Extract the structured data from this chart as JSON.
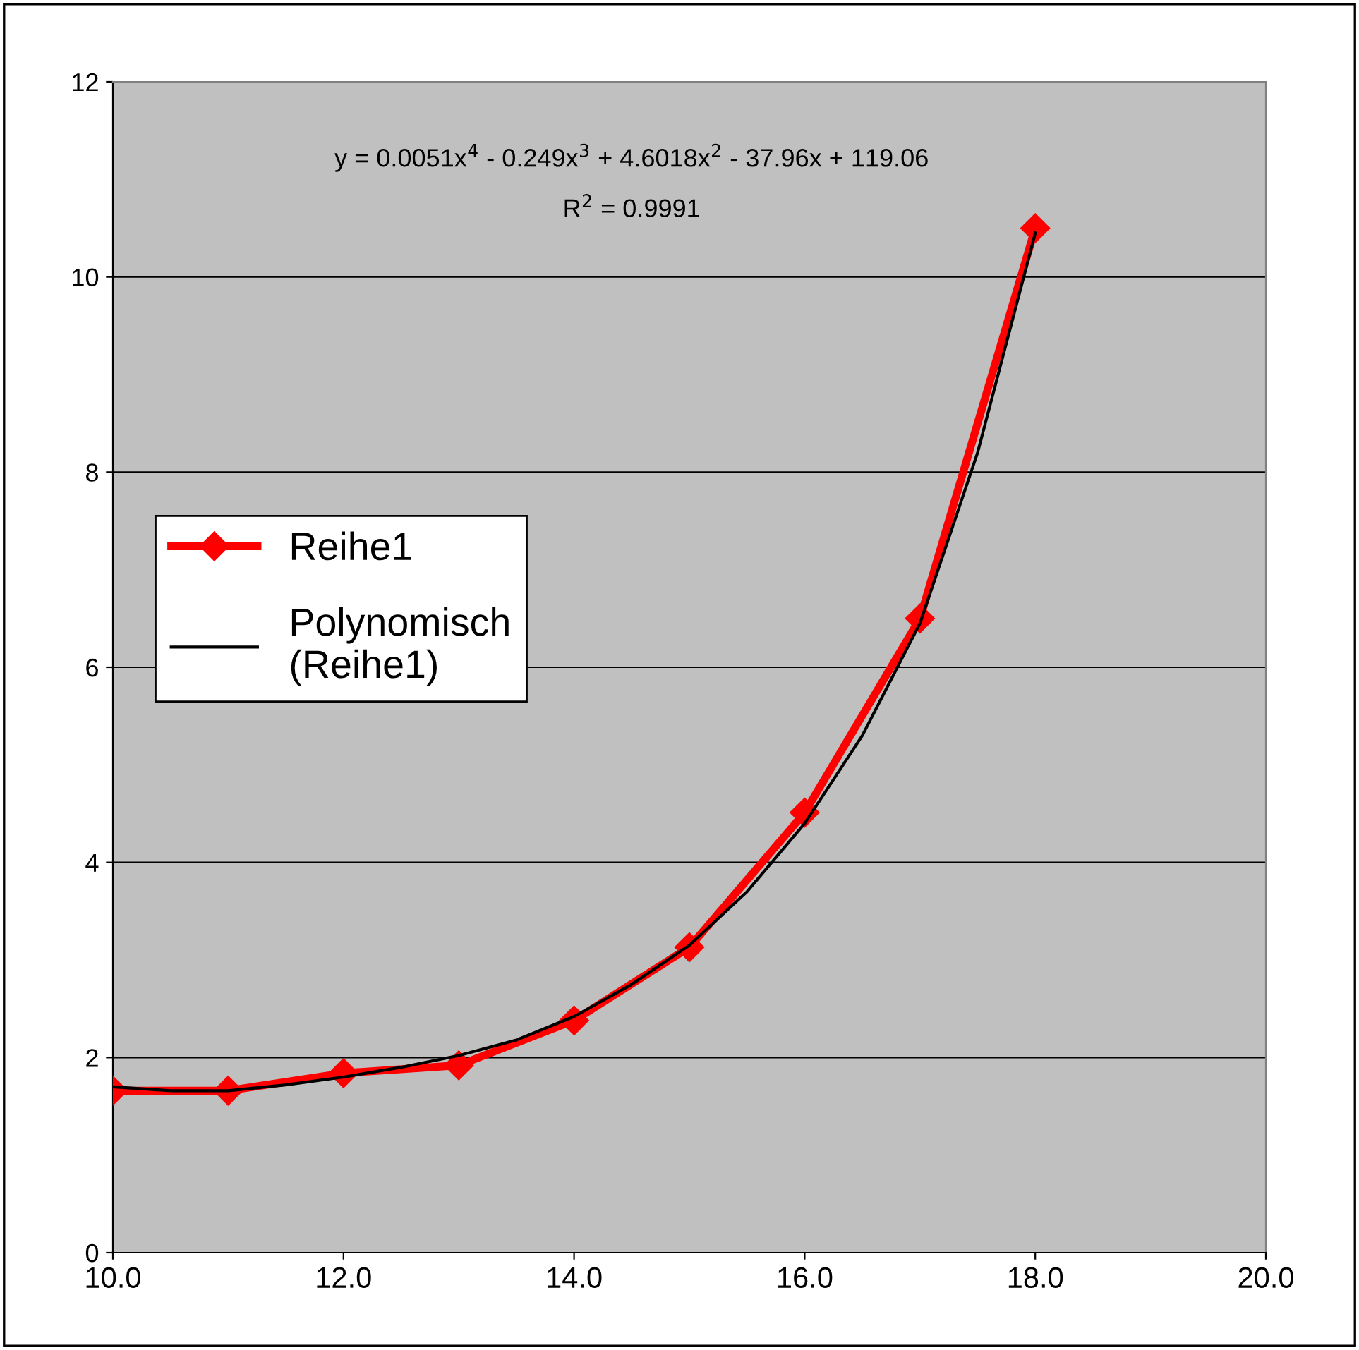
{
  "chart_data": {
    "type": "line",
    "x": [
      10,
      11,
      12,
      13,
      14,
      15,
      16,
      17,
      18
    ],
    "series": [
      {
        "name": "Reihe1",
        "color": "#ff0000",
        "marker": "diamond",
        "values": [
          1.66,
          1.66,
          1.84,
          1.92,
          2.38,
          3.13,
          4.51,
          6.5,
          10.5
        ]
      },
      {
        "name": "Polynomisch\n(Reihe1)",
        "color": "#000000",
        "marker": "none",
        "x": [
          10,
          10.5,
          11,
          11.5,
          12,
          12.5,
          13,
          13.5,
          14,
          14.5,
          15,
          15.5,
          16,
          16.5,
          17,
          17.5,
          18
        ],
        "values": [
          1.7,
          1.66,
          1.66,
          1.72,
          1.8,
          1.9,
          2.02,
          2.18,
          2.42,
          2.75,
          3.15,
          3.7,
          4.4,
          5.3,
          6.45,
          8.2,
          10.45
        ]
      }
    ],
    "xlim": [
      10,
      20
    ],
    "xticks": [
      {
        "value": 10,
        "label": "10.0"
      },
      {
        "value": 12,
        "label": "12.0"
      },
      {
        "value": 14,
        "label": "14.0"
      },
      {
        "value": 16,
        "label": "16.0"
      },
      {
        "value": 18,
        "label": "18.0"
      },
      {
        "value": 20,
        "label": "20.0"
      }
    ],
    "ylim": [
      0,
      12
    ],
    "yticks": [
      0,
      2,
      4,
      6,
      8,
      10,
      12
    ],
    "grid": "y",
    "legend": "left",
    "annotations": [
      "y = 0.0051x$^{4}$ - 0.249x$^{3}$ + 4.6018x$^{2}$ - 37.96x + 119.06",
      "R$^{2}$ = 0.9991"
    ]
  }
}
